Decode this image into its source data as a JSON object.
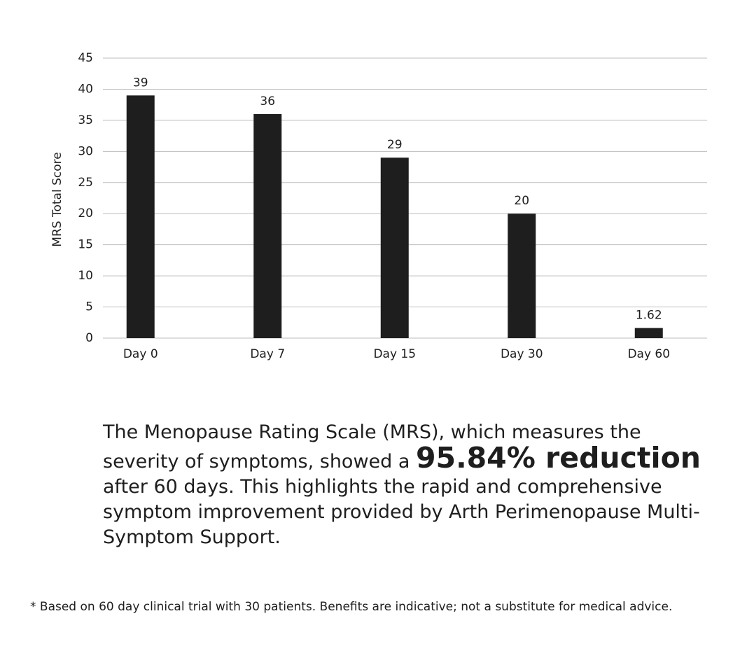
{
  "chart_data": {
    "type": "bar",
    "ylabel": "MRS Total Score",
    "categories": [
      "Day 0",
      "Day 7",
      "Day 15",
      "Day 30",
      "Day 60"
    ],
    "values": [
      39,
      36,
      29,
      20,
      1.62
    ],
    "color": "#1e1e1e",
    "ylim": [
      0,
      45
    ],
    "yticks": [
      0,
      5,
      10,
      15,
      20,
      25,
      30,
      35,
      40,
      45
    ],
    "grid": true
  },
  "summary": {
    "before": "The Menopause Rating Scale (MRS), which measures the severity of symptoms, showed a",
    "highlight": "95.84% reduction",
    "after": "after 60 days. This highlights the rapid and comprehensive symptom improvement provided by Arth Perimenopause Multi-Symptom Support."
  },
  "footnote": "* Based on 60 day clinical trial with 30 patients. Benefits are indicative; not a substitute for medical advice."
}
